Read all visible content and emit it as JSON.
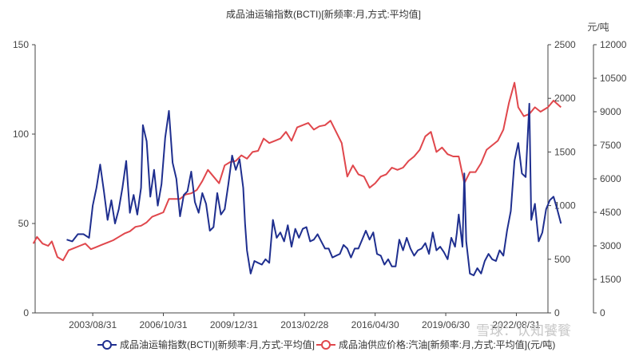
{
  "chart_data": {
    "type": "line",
    "title": "成品油运输指数(BCTI)[新频率:月,方式:平均值]",
    "x_ticks": [
      "2003/08/31",
      "2006/10/31",
      "2009/12/31",
      "2013/02/28",
      "2016/04/30",
      "2019/06/30",
      "2022/08/31"
    ],
    "x_range": [
      "2001-01",
      "2024-01"
    ],
    "axes": {
      "left": {
        "ylim": [
          0,
          150
        ],
        "ticks": [
          "0",
          "50",
          "100",
          "150"
        ]
      },
      "right1": {
        "ylim": [
          0,
          2500
        ],
        "ticks": [
          "0",
          "500",
          "1000",
          "1500",
          "2000",
          "2500"
        ]
      },
      "right2": {
        "ylim": [
          0,
          12000
        ],
        "ticks": [
          "0",
          "1500",
          "3000",
          "4500",
          "6000",
          "7500",
          "9000",
          "10500",
          "12000"
        ],
        "unit": "元/吨"
      }
    },
    "legend_position": "bottom",
    "grid": false,
    "series": [
      {
        "name": "成品油运输指数(BCTI)[新频率:月,方式:平均值]",
        "axis": "left",
        "color": "#1f2f8f",
        "points": [
          [
            "2002-06",
            41
          ],
          [
            "2002-09",
            40
          ],
          [
            "2002-12",
            44
          ],
          [
            "2003-03",
            44
          ],
          [
            "2003-06",
            42
          ],
          [
            "2003-08",
            60
          ],
          [
            "2003-10",
            70
          ],
          [
            "2003-12",
            83
          ],
          [
            "2004-02",
            68
          ],
          [
            "2004-04",
            52
          ],
          [
            "2004-06",
            63
          ],
          [
            "2004-08",
            50
          ],
          [
            "2004-10",
            58
          ],
          [
            "2004-12",
            70
          ],
          [
            "2005-02",
            85
          ],
          [
            "2005-04",
            56
          ],
          [
            "2005-06",
            66
          ],
          [
            "2005-08",
            55
          ],
          [
            "2005-10",
            70
          ],
          [
            "2005-11",
            105
          ],
          [
            "2006-01",
            96
          ],
          [
            "2006-03",
            65
          ],
          [
            "2006-05",
            80
          ],
          [
            "2006-07",
            60
          ],
          [
            "2006-09",
            72
          ],
          [
            "2006-11",
            98
          ],
          [
            "2007-01",
            113
          ],
          [
            "2007-03",
            84
          ],
          [
            "2007-05",
            75
          ],
          [
            "2007-07",
            54
          ],
          [
            "2007-09",
            66
          ],
          [
            "2007-11",
            68
          ],
          [
            "2008-01",
            79
          ],
          [
            "2008-03",
            62
          ],
          [
            "2008-05",
            56
          ],
          [
            "2008-07",
            67
          ],
          [
            "2008-09",
            61
          ],
          [
            "2008-11",
            46
          ],
          [
            "2009-01",
            48
          ],
          [
            "2009-03",
            67
          ],
          [
            "2009-05",
            55
          ],
          [
            "2009-07",
            58
          ],
          [
            "2009-09",
            72
          ],
          [
            "2009-11",
            88
          ],
          [
            "2010-01",
            80
          ],
          [
            "2010-03",
            86
          ],
          [
            "2010-05",
            70
          ],
          [
            "2010-06",
            50
          ],
          [
            "2010-07",
            35
          ],
          [
            "2010-09",
            22
          ],
          [
            "2010-11",
            29
          ],
          [
            "2011-01",
            28
          ],
          [
            "2011-03",
            27
          ],
          [
            "2011-05",
            30
          ],
          [
            "2011-07",
            28
          ],
          [
            "2011-09",
            52
          ],
          [
            "2011-11",
            42
          ],
          [
            "2012-01",
            45
          ],
          [
            "2012-03",
            40
          ],
          [
            "2012-05",
            49
          ],
          [
            "2012-07",
            37
          ],
          [
            "2012-09",
            47
          ],
          [
            "2012-11",
            42
          ],
          [
            "2013-01",
            47
          ],
          [
            "2013-03",
            48
          ],
          [
            "2013-05",
            40
          ],
          [
            "2013-07",
            41
          ],
          [
            "2013-09",
            44
          ],
          [
            "2013-11",
            40
          ],
          [
            "2014-01",
            36
          ],
          [
            "2014-03",
            36
          ],
          [
            "2014-05",
            31
          ],
          [
            "2014-07",
            32
          ],
          [
            "2014-09",
            33
          ],
          [
            "2014-11",
            38
          ],
          [
            "2015-01",
            36
          ],
          [
            "2015-03",
            31
          ],
          [
            "2015-05",
            36
          ],
          [
            "2015-07",
            36
          ],
          [
            "2015-09",
            41
          ],
          [
            "2015-11",
            46
          ],
          [
            "2016-01",
            41
          ],
          [
            "2016-03",
            45
          ],
          [
            "2016-05",
            33
          ],
          [
            "2016-07",
            32
          ],
          [
            "2016-09",
            27
          ],
          [
            "2016-11",
            30
          ],
          [
            "2017-01",
            26
          ],
          [
            "2017-03",
            26
          ],
          [
            "2017-05",
            41
          ],
          [
            "2017-07",
            35
          ],
          [
            "2017-09",
            42
          ],
          [
            "2017-11",
            36
          ],
          [
            "2018-01",
            32
          ],
          [
            "2018-03",
            35
          ],
          [
            "2018-05",
            36
          ],
          [
            "2018-07",
            39
          ],
          [
            "2018-09",
            33
          ],
          [
            "2018-11",
            45
          ],
          [
            "2019-01",
            35
          ],
          [
            "2019-03",
            37
          ],
          [
            "2019-05",
            34
          ],
          [
            "2019-07",
            30
          ],
          [
            "2019-09",
            42
          ],
          [
            "2019-11",
            37
          ],
          [
            "2019-12",
            45
          ],
          [
            "2020-01",
            55
          ],
          [
            "2020-03",
            37
          ],
          [
            "2020-04",
            78
          ],
          [
            "2020-05",
            40
          ],
          [
            "2020-07",
            22
          ],
          [
            "2020-09",
            21
          ],
          [
            "2020-11",
            25
          ],
          [
            "2021-01",
            22
          ],
          [
            "2021-03",
            29
          ],
          [
            "2021-05",
            33
          ],
          [
            "2021-07",
            30
          ],
          [
            "2021-09",
            29
          ],
          [
            "2021-11",
            35
          ],
          [
            "2022-01",
            32
          ],
          [
            "2022-03",
            46
          ],
          [
            "2022-05",
            57
          ],
          [
            "2022-07",
            85
          ],
          [
            "2022-09",
            95
          ],
          [
            "2022-11",
            78
          ],
          [
            "2023-01",
            76
          ],
          [
            "2023-03",
            117
          ],
          [
            "2023-04",
            52
          ],
          [
            "2023-06",
            61
          ],
          [
            "2023-08",
            40
          ],
          [
            "2023-10",
            45
          ],
          [
            "2023-12",
            58
          ],
          [
            "2024-02",
            63
          ],
          [
            "2024-04",
            65
          ],
          [
            "2024-06",
            58
          ],
          [
            "2024-08",
            50
          ]
        ]
      },
      {
        "name": "成品油供应价格:汽油[新频率:月,方式:平均值](元/吨)",
        "axis": "right2",
        "color": "#e0474c",
        "points": [
          [
            "2000-12",
            3100
          ],
          [
            "2001-02",
            3400
          ],
          [
            "2001-05",
            3100
          ],
          [
            "2001-08",
            3000
          ],
          [
            "2001-10",
            3200
          ],
          [
            "2002-01",
            2500
          ],
          [
            "2002-04",
            2350
          ],
          [
            "2002-07",
            2800
          ],
          [
            "2002-10",
            2900
          ],
          [
            "2003-01",
            3000
          ],
          [
            "2003-04",
            3100
          ],
          [
            "2003-07",
            2850
          ],
          [
            "2003-10",
            2950
          ],
          [
            "2004-01",
            3050
          ],
          [
            "2004-04",
            3150
          ],
          [
            "2004-07",
            3250
          ],
          [
            "2004-10",
            3400
          ],
          [
            "2005-01",
            3550
          ],
          [
            "2005-04",
            3650
          ],
          [
            "2005-07",
            3850
          ],
          [
            "2005-10",
            3900
          ],
          [
            "2006-01",
            4050
          ],
          [
            "2006-04",
            4300
          ],
          [
            "2006-07",
            4400
          ],
          [
            "2006-10",
            4500
          ],
          [
            "2007-01",
            5100
          ],
          [
            "2007-04",
            5100
          ],
          [
            "2007-07",
            5100
          ],
          [
            "2007-10",
            5300
          ],
          [
            "2008-01",
            5350
          ],
          [
            "2008-04",
            5500
          ],
          [
            "2008-07",
            5900
          ],
          [
            "2008-10",
            6400
          ],
          [
            "2009-01",
            6100
          ],
          [
            "2009-04",
            5800
          ],
          [
            "2009-07",
            6600
          ],
          [
            "2009-10",
            6750
          ],
          [
            "2010-01",
            6800
          ],
          [
            "2010-04",
            7050
          ],
          [
            "2010-07",
            6900
          ],
          [
            "2010-10",
            7200
          ],
          [
            "2011-01",
            7250
          ],
          [
            "2011-04",
            7800
          ],
          [
            "2011-07",
            7600
          ],
          [
            "2011-10",
            7700
          ],
          [
            "2012-01",
            7800
          ],
          [
            "2012-04",
            8100
          ],
          [
            "2012-07",
            7700
          ],
          [
            "2012-10",
            8300
          ],
          [
            "2013-01",
            8400
          ],
          [
            "2013-04",
            8500
          ],
          [
            "2013-07",
            8200
          ],
          [
            "2013-10",
            8350
          ],
          [
            "2014-01",
            8400
          ],
          [
            "2014-04",
            8600
          ],
          [
            "2014-07",
            8100
          ],
          [
            "2014-10",
            7600
          ],
          [
            "2015-01",
            6100
          ],
          [
            "2015-04",
            6600
          ],
          [
            "2015-07",
            6200
          ],
          [
            "2015-10",
            6100
          ],
          [
            "2016-01",
            5600
          ],
          [
            "2016-04",
            5800
          ],
          [
            "2016-07",
            6100
          ],
          [
            "2016-10",
            6200
          ],
          [
            "2017-01",
            6500
          ],
          [
            "2017-04",
            6400
          ],
          [
            "2017-07",
            6500
          ],
          [
            "2017-10",
            6800
          ],
          [
            "2018-01",
            7000
          ],
          [
            "2018-04",
            7300
          ],
          [
            "2018-07",
            7900
          ],
          [
            "2018-10",
            8100
          ],
          [
            "2019-01",
            7200
          ],
          [
            "2019-04",
            7400
          ],
          [
            "2019-07",
            7100
          ],
          [
            "2019-10",
            7000
          ],
          [
            "2020-01",
            7000
          ],
          [
            "2020-04",
            5800
          ],
          [
            "2020-07",
            6300
          ],
          [
            "2020-10",
            6300
          ],
          [
            "2021-01",
            6700
          ],
          [
            "2021-04",
            7300
          ],
          [
            "2021-07",
            7500
          ],
          [
            "2021-10",
            7700
          ],
          [
            "2022-01",
            8200
          ],
          [
            "2022-04",
            9400
          ],
          [
            "2022-07",
            10300
          ],
          [
            "2022-09",
            9200
          ],
          [
            "2022-12",
            8800
          ],
          [
            "2023-03",
            8900
          ],
          [
            "2023-06",
            9200
          ],
          [
            "2023-09",
            9000
          ],
          [
            "2024-01",
            9200
          ],
          [
            "2024-04",
            9500
          ],
          [
            "2024-08",
            9200
          ]
        ]
      }
    ],
    "watermark": "雪球：认知饕餮"
  }
}
